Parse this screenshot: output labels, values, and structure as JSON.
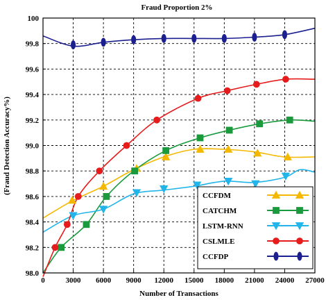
{
  "chart_data": {
    "type": "line",
    "title": "Fraud Proportion 2%",
    "xlabel": "Number of Transactions",
    "ylabel": "(Fraud Detection Accuracy%)",
    "xlim": [
      0,
      27000
    ],
    "ylim": [
      98.0,
      100.0
    ],
    "x_ticks": [
      0,
      3000,
      6000,
      9000,
      12000,
      15000,
      18000,
      21000,
      24000,
      27000
    ],
    "x_tick_labels": [
      "0",
      "3000",
      "6000",
      "9000",
      "12000",
      "15000",
      "18000",
      "21000",
      "24000",
      "27000"
    ],
    "y_ticks": [
      98.0,
      98.2,
      98.4,
      98.6,
      98.8,
      99.0,
      99.2,
      99.4,
      99.6,
      99.8,
      100.0
    ],
    "y_tick_labels": [
      "98.0",
      "98.2",
      "98.4",
      "98.6",
      "98.8",
      "99.0",
      "99.2",
      "99.4",
      "99.6",
      "99.8",
      "100"
    ],
    "grid": true,
    "legend_position": "bottom-right",
    "series": [
      {
        "name": "CCFDM",
        "color": "#f5b800",
        "marker": "triangle-up",
        "curve": [
          [
            0,
            98.43
          ],
          [
            3000,
            98.57
          ],
          [
            6000,
            98.68
          ],
          [
            9000,
            98.81
          ],
          [
            12000,
            98.91
          ],
          [
            15000,
            98.97
          ],
          [
            18000,
            98.97
          ],
          [
            21000,
            98.95
          ],
          [
            24000,
            98.91
          ],
          [
            27000,
            98.91
          ]
        ],
        "points": [
          [
            2900,
            98.57
          ],
          [
            6000,
            98.68
          ],
          [
            9300,
            98.82
          ],
          [
            12200,
            98.91
          ],
          [
            15600,
            98.97
          ],
          [
            18400,
            98.97
          ],
          [
            21300,
            98.94
          ],
          [
            24300,
            98.91
          ]
        ]
      },
      {
        "name": "CATCHM",
        "color": "#1a9a3c",
        "marker": "square",
        "curve": [
          [
            0,
            98.0
          ],
          [
            1800,
            98.2
          ],
          [
            4300,
            98.38
          ],
          [
            6300,
            98.6
          ],
          [
            9000,
            98.8
          ],
          [
            12200,
            98.96
          ],
          [
            15600,
            99.06
          ],
          [
            18500,
            99.12
          ],
          [
            21500,
            99.17
          ],
          [
            24500,
            99.2
          ],
          [
            27000,
            99.19
          ]
        ],
        "points": [
          [
            1800,
            98.2
          ],
          [
            4300,
            98.38
          ],
          [
            6300,
            98.6
          ],
          [
            9100,
            98.8
          ],
          [
            12200,
            98.96
          ],
          [
            15600,
            99.06
          ],
          [
            18500,
            99.12
          ],
          [
            21500,
            99.17
          ],
          [
            24500,
            99.2
          ]
        ]
      },
      {
        "name": "LSTM-RNN",
        "color": "#22b5ea",
        "marker": "triangle-down",
        "curve": [
          [
            0,
            98.32
          ],
          [
            3000,
            98.45
          ],
          [
            6000,
            98.5
          ],
          [
            9000,
            98.62
          ],
          [
            12000,
            98.65
          ],
          [
            15000,
            98.68
          ],
          [
            18000,
            98.72
          ],
          [
            21000,
            98.71
          ],
          [
            24000,
            98.75
          ],
          [
            25500,
            98.81
          ],
          [
            27000,
            98.79
          ]
        ],
        "points": [
          [
            3000,
            98.45
          ],
          [
            6000,
            98.5
          ],
          [
            9300,
            98.63
          ],
          [
            12000,
            98.66
          ],
          [
            15300,
            98.69
          ],
          [
            18400,
            98.72
          ],
          [
            21100,
            98.7
          ],
          [
            24100,
            98.76
          ]
        ]
      },
      {
        "name": "CSLMLE",
        "color": "#e61c1c",
        "marker": "circle",
        "curve": [
          [
            0,
            97.97
          ],
          [
            1200,
            98.2
          ],
          [
            2400,
            98.38
          ],
          [
            3500,
            98.6
          ],
          [
            5600,
            98.8
          ],
          [
            8300,
            99.0
          ],
          [
            11300,
            99.2
          ],
          [
            15400,
            99.37
          ],
          [
            18300,
            99.43
          ],
          [
            21200,
            99.48
          ],
          [
            24100,
            99.52
          ],
          [
            27000,
            99.52
          ]
        ],
        "points": [
          [
            1200,
            98.2
          ],
          [
            2400,
            98.38
          ],
          [
            3500,
            98.6
          ],
          [
            5600,
            98.8
          ],
          [
            8300,
            99.0
          ],
          [
            11300,
            99.2
          ],
          [
            15400,
            99.37
          ],
          [
            18300,
            99.43
          ],
          [
            21200,
            99.48
          ],
          [
            24100,
            99.52
          ]
        ]
      },
      {
        "name": "CCFDP",
        "color": "#1b1f8f",
        "marker": "diamond",
        "curve": [
          [
            0,
            99.86
          ],
          [
            3000,
            99.78
          ],
          [
            6000,
            99.81
          ],
          [
            9000,
            99.83
          ],
          [
            12000,
            99.84
          ],
          [
            15000,
            99.84
          ],
          [
            18000,
            99.84
          ],
          [
            21000,
            99.85
          ],
          [
            24000,
            99.87
          ],
          [
            27000,
            99.92
          ]
        ],
        "points": [
          [
            3000,
            99.79
          ],
          [
            6000,
            99.81
          ],
          [
            9000,
            99.83
          ],
          [
            12000,
            99.84
          ],
          [
            15000,
            99.84
          ],
          [
            18000,
            99.84
          ],
          [
            21000,
            99.85
          ],
          [
            24000,
            99.87
          ]
        ]
      }
    ]
  }
}
